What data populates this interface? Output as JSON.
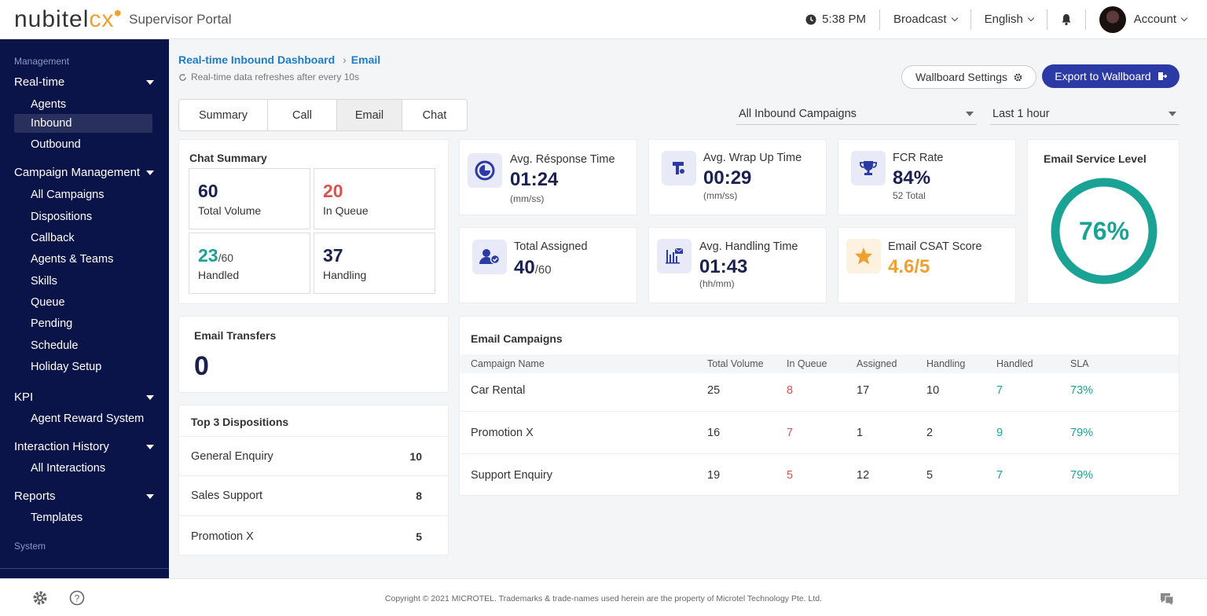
{
  "header": {
    "logo_part1": "nubitel",
    "logo_part2": "cx",
    "portal_name": "Supervisor Portal",
    "time": "5:38 PM",
    "broadcast_label": "Broadcast",
    "language_label": "English",
    "account_label": "Account"
  },
  "sidebar": {
    "section_management": "Management",
    "section_system": "System",
    "groups": {
      "realtime": "Real-time",
      "campaign": "Campaign Management",
      "kpi": "KPI",
      "history": "Interaction History",
      "reports": "Reports"
    },
    "items": {
      "agents": "Agents",
      "inbound": "Inbound",
      "outbound": "Outbound",
      "all_campaigns": "All Campaigns",
      "dispositions": "Dispositions",
      "callback": "Callback",
      "agents_teams": "Agents & Teams",
      "skills": "Skills",
      "queue": "Queue",
      "pending": "Pending",
      "schedule": "Schedule",
      "holiday": "Holiday Setup",
      "reward": "Agent Reward System",
      "all_interactions": "All Interactions",
      "templates": "Templates"
    }
  },
  "breadcrumb": {
    "parent": "Real-time Inbound Dashboard",
    "sep": "›",
    "current": "Email"
  },
  "refresh_note": "Real-time data refreshes after every 10s",
  "buttons": {
    "wallboard_settings": "Wallboard Settings",
    "export": "Export to Wallboard"
  },
  "tabs": [
    "Summary",
    "Call",
    "Email",
    "Chat"
  ],
  "filters": {
    "campaign": "All Inbound Campaigns",
    "period": "Last 1 hour"
  },
  "chat_summary": {
    "title": "Chat Summary",
    "total_volume": {
      "value": "60",
      "label": "Total Volume"
    },
    "in_queue": {
      "value": "20",
      "label": "In Queue"
    },
    "handled": {
      "value": "23",
      "of": "/60",
      "label": "Handled"
    },
    "handling": {
      "value": "37",
      "label": "Handling"
    }
  },
  "kpis": {
    "avg_response": {
      "label": "Avg. Résponse Time",
      "value": "01:24",
      "unit": "(mm/ss)"
    },
    "avg_wrap": {
      "label": "Avg. Wrap Up Time",
      "value": "00:29",
      "unit": "(mm/ss)"
    },
    "fcr": {
      "label": "FCR Rate",
      "value": "84%",
      "sub": "52 Total"
    },
    "total_assigned": {
      "label": "Total Assigned",
      "value": "40",
      "of": "/60"
    },
    "avg_handling": {
      "label": "Avg. Handling Time",
      "value": "01:43",
      "unit": "(hh/mm)"
    },
    "csat": {
      "label": "Email CSAT Score",
      "value": "4.6/5"
    }
  },
  "service_level": {
    "title": "Email Service Level",
    "value": "76%",
    "fraction": 0.76,
    "color": "#1aa394"
  },
  "transfers": {
    "title": "Email Transfers",
    "value": "0"
  },
  "dispositions": {
    "title": "Top 3 Dispositions",
    "rows": [
      {
        "name": "General Enquiry",
        "count": "10"
      },
      {
        "name": "Sales Support",
        "count": "8"
      },
      {
        "name": "Promotion X",
        "count": "5"
      }
    ]
  },
  "campaigns": {
    "title": "Email Campaigns",
    "headers": [
      "Campaign Name",
      "Total Volume",
      "In Queue",
      "Assigned",
      "Handling",
      "Handled",
      "SLA"
    ],
    "rows": [
      [
        "Car Rental",
        "25",
        "8",
        "17",
        "10",
        "7",
        "73%"
      ],
      [
        "Promotion X",
        "16",
        "7",
        "1",
        "2",
        "9",
        "79%"
      ],
      [
        "Support Enquiry",
        "19",
        "5",
        "12",
        "5",
        "7",
        "79%"
      ]
    ]
  },
  "footer": {
    "copyright": "Copyright © 2021 MICROTEL. Trademarks & trade-names used herein are the property of Microtel Technology Pte. Ltd."
  },
  "colors": {
    "sidebar": "#0b1448",
    "accent": "#2c3aa6",
    "link": "#1e7bc8",
    "teal": "#1aa394",
    "red": "#d9534f",
    "orange": "#f0a030"
  }
}
